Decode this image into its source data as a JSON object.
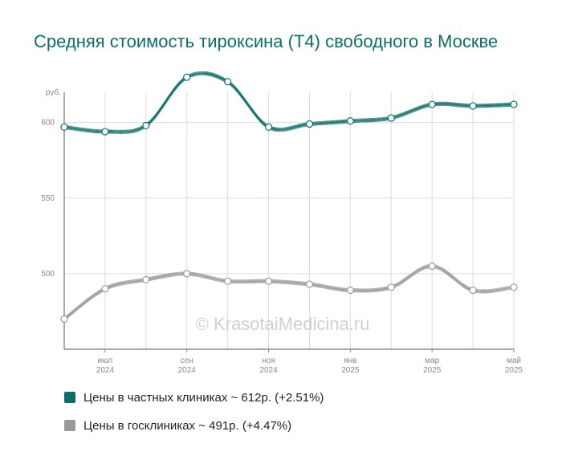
{
  "title": "Средняя стоимость тироксина (Т4) свободного в Москве",
  "watermark": "© KrasotaiMedicina.ru",
  "chart_data": {
    "type": "line",
    "title": "Средняя стоимость тироксина (Т4) свободного в Москве",
    "ylabel": "руб.",
    "ylim": [
      450,
      620
    ],
    "yticks": [
      500,
      550,
      600
    ],
    "x_points": 12,
    "x_tick_labels": [
      {
        "index": 1,
        "month": "июл",
        "year": "2024"
      },
      {
        "index": 3,
        "month": "сен",
        "year": "2024"
      },
      {
        "index": 5,
        "month": "ноя",
        "year": "2024"
      },
      {
        "index": 7,
        "month": "янв",
        "year": "2025"
      },
      {
        "index": 9,
        "month": "мар",
        "year": "2025"
      },
      {
        "index": 11,
        "month": "май",
        "year": "2025"
      }
    ],
    "grid": true,
    "legend_position": "bottom",
    "series": [
      {
        "name": "Цены в частных клиниках ~ 612р. (+2.51%)",
        "color": "#0b6e68",
        "values": [
          597,
          594,
          598,
          630,
          627,
          597,
          599,
          601,
          603,
          612,
          611,
          612
        ]
      },
      {
        "name": "Цены в госклиниках ~ 491р. (+4.47%)",
        "color": "#999999",
        "values": [
          470,
          490,
          496,
          500,
          495,
          495,
          493,
          489,
          491,
          505,
          489,
          491
        ]
      }
    ]
  }
}
